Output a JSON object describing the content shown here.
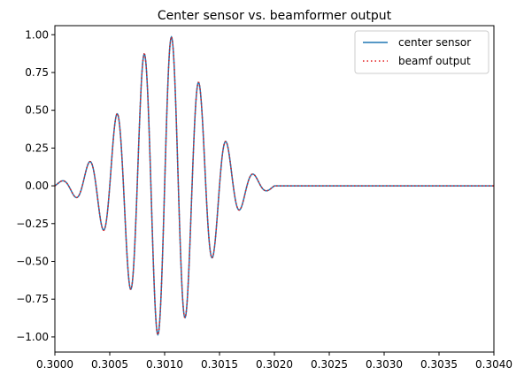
{
  "chart_data": {
    "type": "line",
    "title": "Center sensor vs. beamformer output",
    "xlabel": "",
    "ylabel": "",
    "xlim": [
      0.3,
      0.304
    ],
    "ylim": [
      -1.1,
      1.06
    ],
    "grid": false,
    "legend_position": "top-right",
    "x_ticks": [
      0.3,
      0.3005,
      0.301,
      0.3015,
      0.302,
      0.3025,
      0.303,
      0.3035,
      0.304
    ],
    "x_tick_labels": [
      "0.3000",
      "0.3005",
      "0.3010",
      "0.3015",
      "0.3020",
      "0.3025",
      "0.3030",
      "0.3035",
      "0.3040"
    ],
    "y_ticks": [
      -1.0,
      -0.75,
      -0.5,
      -0.25,
      0.0,
      0.25,
      0.5,
      0.75,
      1.0
    ],
    "y_tick_labels": [
      "−1.00",
      "−0.75",
      "−0.50",
      "−0.25",
      "0.00",
      "0.25",
      "0.50",
      "0.75",
      "1.00"
    ],
    "pulse": {
      "start": 0.3,
      "end": 0.302,
      "frequency_hz": 4000,
      "peak_amplitude": 1.0,
      "tail_value": 0.0
    },
    "series": [
      {
        "name": "center sensor",
        "color": "#1f77b4",
        "style": "solid"
      },
      {
        "name": "beamf output",
        "color": "#e41a1c",
        "style": "dotted"
      }
    ]
  }
}
